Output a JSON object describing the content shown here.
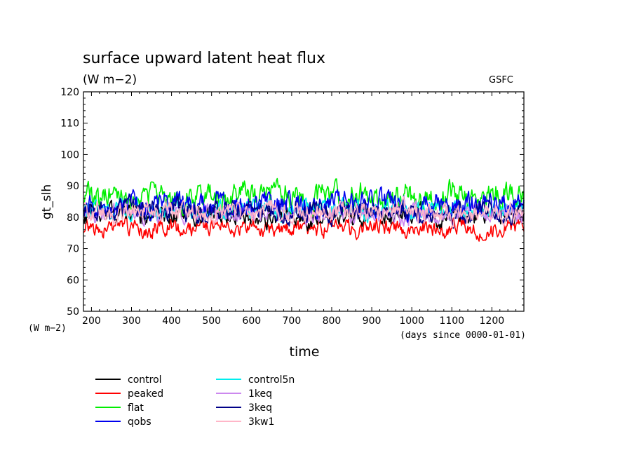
{
  "chart_data": {
    "type": "line",
    "title": "surface upward latent heat flux",
    "subtitle": "(W m−2)",
    "source_label": "GSFC",
    "ylabel": "gt_slh",
    "y_unit_label": "(W m−2)",
    "xlabel": "time",
    "x_unit_label": "(days since 0000-01-01)",
    "xlim": [
      180,
      1280
    ],
    "ylim": [
      50,
      120
    ],
    "x_ticks": [
      200,
      300,
      400,
      500,
      600,
      700,
      800,
      900,
      1000,
      1100,
      1200
    ],
    "y_ticks": [
      50,
      60,
      70,
      80,
      90,
      100,
      110,
      120
    ],
    "grid": false,
    "legend_position": "bottom-left",
    "series": [
      {
        "name": "control",
        "color": "#000000",
        "mean": 80.5,
        "amp": 3.0,
        "seed": 11
      },
      {
        "name": "peaked",
        "color": "#ff0000",
        "mean": 76.5,
        "amp": 2.6,
        "seed": 23
      },
      {
        "name": "flat",
        "color": "#00ee00",
        "mean": 86.5,
        "amp": 4.0,
        "seed": 37
      },
      {
        "name": "qobs",
        "color": "#0000ee",
        "mean": 84.0,
        "amp": 3.6,
        "seed": 41
      },
      {
        "name": "control5n",
        "color": "#00eeee",
        "mean": 82.5,
        "amp": 2.8,
        "seed": 53
      },
      {
        "name": "1keq",
        "color": "#cc88ee",
        "mean": 81.0,
        "amp": 2.7,
        "seed": 67
      },
      {
        "name": "3keq",
        "color": "#000088",
        "mean": 82.0,
        "amp": 3.3,
        "seed": 71
      },
      {
        "name": "3kw1",
        "color": "#ffb6c8",
        "mean": 81.5,
        "amp": 3.0,
        "seed": 89
      }
    ]
  }
}
